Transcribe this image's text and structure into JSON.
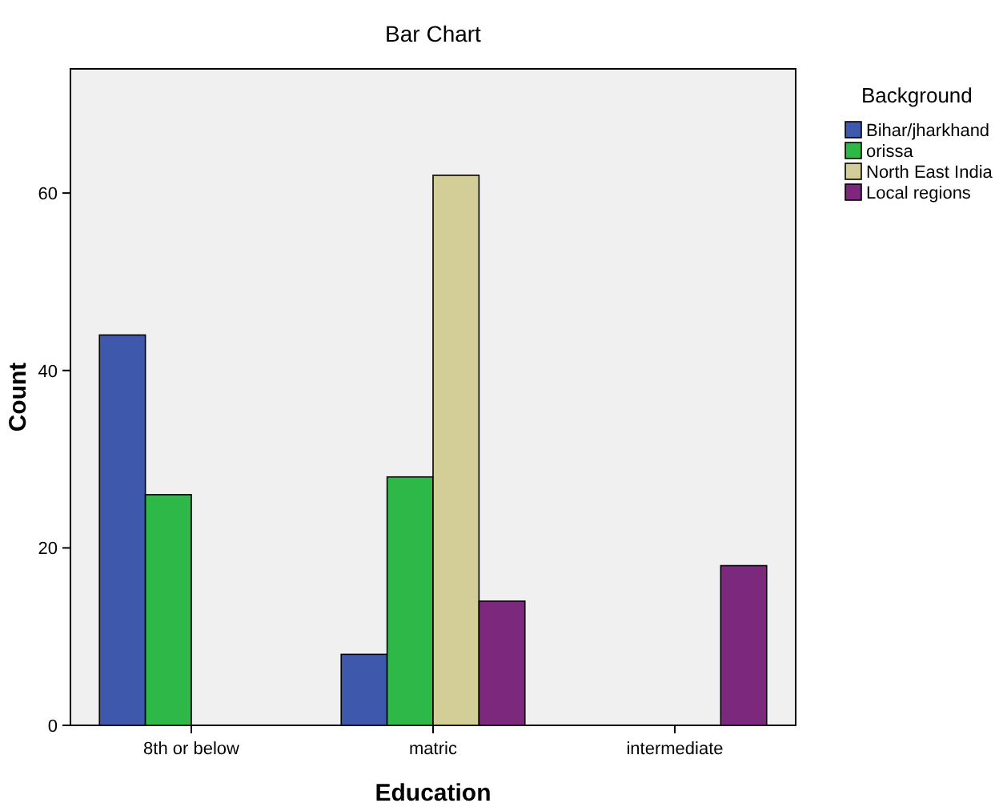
{
  "chart_data": {
    "type": "bar",
    "title": "Bar Chart",
    "xlabel": "Education",
    "ylabel": "Count",
    "legend_title": "Background",
    "categories": [
      "8th or below",
      "matric",
      "intermediate"
    ],
    "series": [
      {
        "name": "Bihar/jharkhand",
        "color": "#3e58ac",
        "values": [
          44,
          8,
          null
        ]
      },
      {
        "name": "orissa",
        "color": "#2eb848",
        "values": [
          26,
          28,
          null
        ]
      },
      {
        "name": "North East India",
        "color": "#d3ce97",
        "values": [
          null,
          62,
          null
        ]
      },
      {
        "name": "Local regions",
        "color": "#7c287d",
        "values": [
          null,
          14,
          18
        ]
      }
    ],
    "ylim": [
      0,
      74
    ],
    "yticks": [
      0,
      20,
      40,
      60
    ],
    "grid": false,
    "legend": "top right"
  }
}
